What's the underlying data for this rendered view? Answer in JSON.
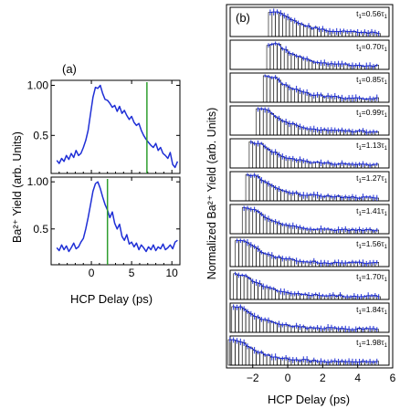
{
  "figure": {
    "panel_a_label": "(a)",
    "panel_b_label": "(b)",
    "panel_a_ylabel": "Ba²⁺ Yield (arb. Units)",
    "panel_a_xlabel": "HCP Delay (ps)",
    "panel_b_ylabel": "Normalized Ba²⁺ Yield (arb. Units)",
    "panel_b_xlabel": "HCP Delay (ps)"
  },
  "colors": {
    "data": "#1f2fd6",
    "marker": "#2e9e2e",
    "axis": "#000000",
    "bars": "#000000"
  },
  "chart_data": [
    {
      "type": "line",
      "panel": "a-top",
      "xlim": [
        -5,
        11
      ],
      "ylim": [
        0.12,
        1.05
      ],
      "xticks": [
        0,
        5,
        10
      ],
      "yticks": [
        0.5,
        1.0
      ],
      "ytick_labels": [
        "0.5",
        "1.00"
      ],
      "marker_line_x": 6.9,
      "x": [
        -4.3,
        -4.0,
        -3.7,
        -3.4,
        -3.1,
        -2.8,
        -2.5,
        -2.2,
        -1.9,
        -1.6,
        -1.3,
        -1.0,
        -0.7,
        -0.4,
        -0.1,
        0.2,
        0.5,
        0.8,
        1.1,
        1.4,
        1.7,
        2.0,
        2.3,
        2.6,
        2.9,
        3.2,
        3.5,
        3.8,
        4.1,
        4.4,
        4.7,
        5.0,
        5.3,
        5.6,
        5.9,
        6.2,
        6.5,
        6.8,
        7.1,
        7.4,
        7.7,
        8.0,
        8.3,
        8.6,
        8.9,
        9.2,
        9.5,
        9.8,
        10.1,
        10.4,
        10.7
      ],
      "y": [
        0.25,
        0.22,
        0.27,
        0.24,
        0.3,
        0.26,
        0.32,
        0.28,
        0.35,
        0.3,
        0.32,
        0.38,
        0.45,
        0.55,
        0.72,
        0.88,
        0.98,
        0.97,
        1.0,
        0.92,
        0.86,
        0.85,
        0.82,
        0.78,
        0.8,
        0.74,
        0.79,
        0.72,
        0.75,
        0.7,
        0.66,
        0.69,
        0.63,
        0.6,
        0.62,
        0.55,
        0.5,
        0.46,
        0.43,
        0.4,
        0.38,
        0.42,
        0.35,
        0.38,
        0.32,
        0.3,
        0.27,
        0.33,
        0.21,
        0.18,
        0.24
      ]
    },
    {
      "type": "line",
      "panel": "a-bottom",
      "xlim": [
        -5,
        11
      ],
      "ylim": [
        0.12,
        1.05
      ],
      "xticks": [
        0,
        5,
        10
      ],
      "yticks": [
        0.5,
        1.0
      ],
      "ytick_labels": [
        "0.5",
        "1.00"
      ],
      "marker_line_x": 2.0,
      "x": [
        -4.3,
        -4.0,
        -3.7,
        -3.4,
        -3.1,
        -2.8,
        -2.5,
        -2.2,
        -1.9,
        -1.6,
        -1.3,
        -1.0,
        -0.7,
        -0.4,
        -0.1,
        0.2,
        0.5,
        0.8,
        1.1,
        1.4,
        1.7,
        2.0,
        2.3,
        2.6,
        2.9,
        3.2,
        3.5,
        3.8,
        4.1,
        4.4,
        4.7,
        5.0,
        5.3,
        5.6,
        5.9,
        6.2,
        6.5,
        6.8,
        7.1,
        7.4,
        7.7,
        8.0,
        8.3,
        8.6,
        8.9,
        9.2,
        9.5,
        9.8,
        10.1,
        10.4,
        10.7
      ],
      "y": [
        0.3,
        0.27,
        0.33,
        0.28,
        0.32,
        0.26,
        0.3,
        0.35,
        0.29,
        0.31,
        0.36,
        0.4,
        0.5,
        0.62,
        0.76,
        0.9,
        0.98,
        1.0,
        0.93,
        0.84,
        0.76,
        0.7,
        0.62,
        0.68,
        0.56,
        0.5,
        0.55,
        0.42,
        0.38,
        0.44,
        0.34,
        0.36,
        0.31,
        0.35,
        0.28,
        0.33,
        0.3,
        0.26,
        0.31,
        0.28,
        0.33,
        0.27,
        0.31,
        0.29,
        0.34,
        0.28,
        0.3,
        0.33,
        0.29,
        0.36,
        0.38
      ]
    },
    {
      "type": "bar",
      "panel": "b",
      "xlim": [
        -3.5,
        6
      ],
      "ylim": [
        0,
        1.1
      ],
      "xticks": [
        -2,
        0,
        2,
        4,
        6
      ],
      "strips": [
        {
          "label_main": "t",
          "label_sub1": "1",
          "label_value": "=0.56τ",
          "label_sub2": "1",
          "onset": -1.1
        },
        {
          "label_main": "t",
          "label_sub1": "1",
          "label_value": "=0.70τ",
          "label_sub2": "1",
          "onset": -1.2
        },
        {
          "label_main": "t",
          "label_sub1": "1",
          "label_value": "=0.85τ",
          "label_sub2": "1",
          "onset": -1.4
        },
        {
          "label_main": "t",
          "label_sub1": "1",
          "label_value": "=0.99τ",
          "label_sub2": "1",
          "onset": -1.8
        },
        {
          "label_main": "t",
          "label_sub1": "1",
          "label_value": "=1.13τ",
          "label_sub2": "1",
          "onset": -2.2
        },
        {
          "label_main": "t",
          "label_sub1": "1",
          "label_value": "=1.27τ",
          "label_sub2": "1",
          "onset": -2.4
        },
        {
          "label_main": "t",
          "label_sub1": "1",
          "label_value": "=1.41τ",
          "label_sub2": "1",
          "onset": -2.6
        },
        {
          "label_main": "t",
          "label_sub1": "1",
          "label_value": "=1.56τ",
          "label_sub2": "1",
          "onset": -3.0
        },
        {
          "label_main": "t",
          "label_sub1": "1",
          "label_value": "=1.70τ",
          "label_sub2": "1",
          "onset": -3.1
        },
        {
          "label_main": "t",
          "label_sub1": "1",
          "label_value": "=1.84τ",
          "label_sub2": "1",
          "onset": -3.2
        },
        {
          "label_main": "t",
          "label_sub1": "1",
          "label_value": "=1.98τ",
          "label_sub2": "1",
          "onset": -3.4
        }
      ]
    }
  ]
}
